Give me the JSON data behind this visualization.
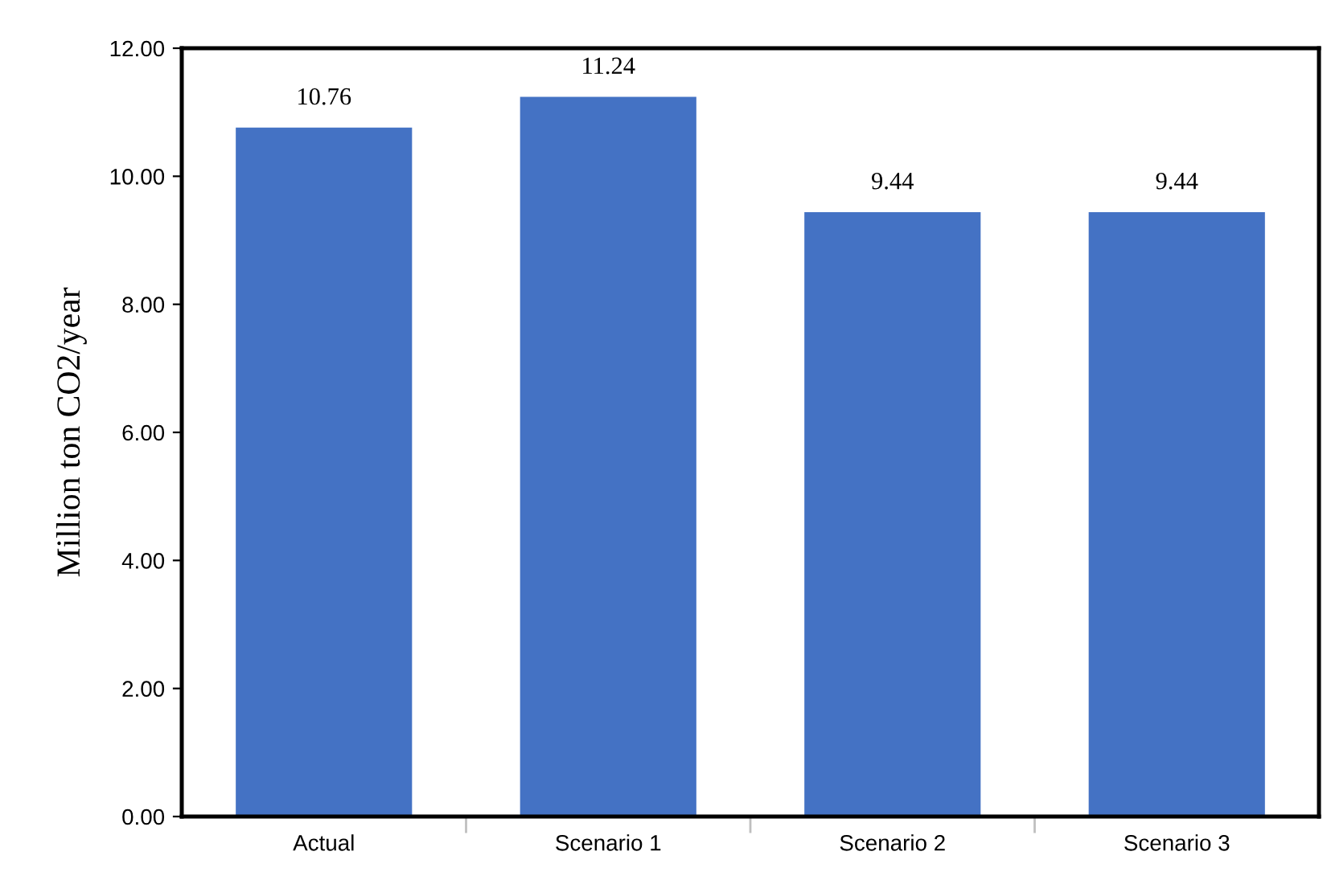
{
  "chart_data": {
    "type": "bar",
    "ylabel": "Million ton CO2/year",
    "categories": [
      "Actual",
      "Scenario 1",
      "Scenario 2",
      "Scenario 3"
    ],
    "values": [
      10.76,
      11.24,
      9.44,
      9.44
    ],
    "color": "#4472c4",
    "ylim": [
      0,
      12
    ],
    "yticks": [
      {
        "value": 0,
        "label": "0.00"
      },
      {
        "value": 2,
        "label": "2.00"
      },
      {
        "value": 4,
        "label": "4.00"
      },
      {
        "value": 6,
        "label": "6.00"
      },
      {
        "value": 8,
        "label": "8.00"
      },
      {
        "value": 10,
        "label": "10.00"
      },
      {
        "value": 12,
        "label": "12.00"
      }
    ],
    "data_labels": true,
    "grid": false,
    "legend": false
  }
}
